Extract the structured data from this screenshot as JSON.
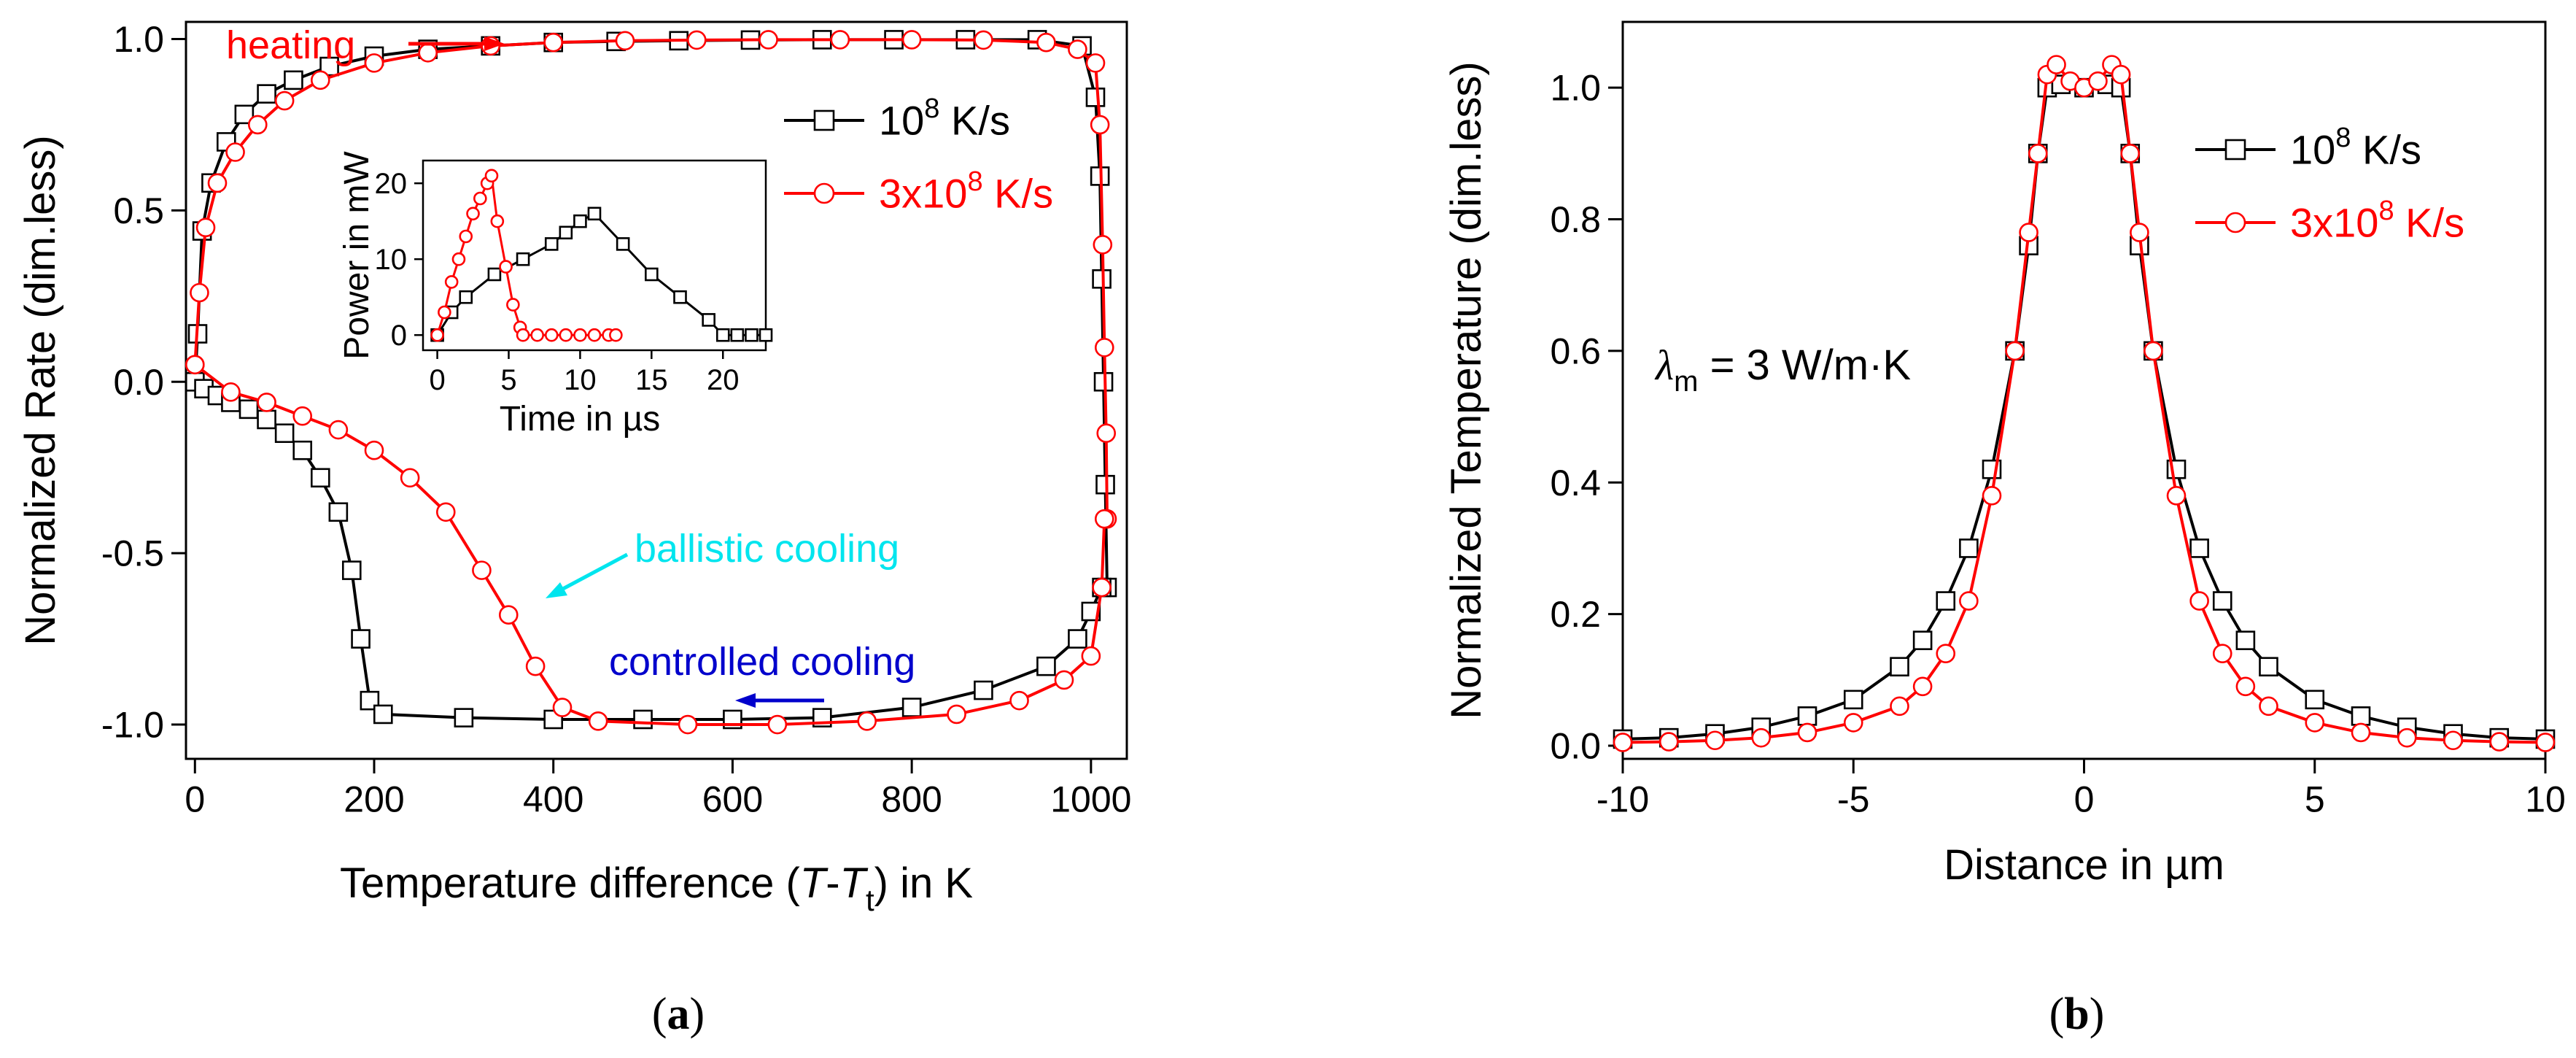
{
  "colors": {
    "black_series": "#000000",
    "red_series": "#ff0000",
    "ballistic": "#00e5ee",
    "controlled": "#0000cc",
    "heating": "#ff0000"
  },
  "chart_data": [
    {
      "id": "a",
      "type": "line",
      "panel_label": "(a)",
      "panel_letter": "a",
      "xlabel": "Temperature difference (T-Tt) in K",
      "xlabel_parts": {
        "pre": "Temperature difference (",
        "T": "T",
        "dash": "-",
        "T2": "T",
        "sub": "t",
        "post": ")  in K"
      },
      "ylabel": "Normalized Rate (dim.less)",
      "xlim": [
        -10,
        1040
      ],
      "ylim": [
        -1.1,
        1.05
      ],
      "xticks": [
        0,
        200,
        400,
        600,
        800,
        1000
      ],
      "xtick_labels": [
        "0",
        "200",
        "400",
        "600",
        "800",
        "1000"
      ],
      "yticks": [
        -1.0,
        -0.5,
        0.0,
        0.5,
        1.0
      ],
      "ytick_labels": [
        "-1.0",
        "-0.5",
        "0.0",
        "0.5",
        "1.0"
      ],
      "legend": [
        {
          "base": "10",
          "sup": "8",
          "unit": " K/s",
          "color": "#000000",
          "marker": "square"
        },
        {
          "base": "3x10",
          "sup": "8",
          "unit": " K/s",
          "color": "#ff0000",
          "marker": "circle"
        }
      ],
      "annotations": {
        "heating": "heating",
        "ballistic": "ballistic cooling",
        "controlled": "controlled cooling"
      },
      "series": [
        {
          "name": "10^8 K/s",
          "color": "#000000",
          "marker": "square",
          "heating": [
            [
              0,
              0
            ],
            [
              3,
              0.14
            ],
            [
              8,
              0.44
            ],
            [
              18,
              0.58
            ],
            [
              35,
              0.7
            ],
            [
              55,
              0.78
            ],
            [
              80,
              0.84
            ],
            [
              110,
              0.88
            ],
            [
              150,
              0.92
            ],
            [
              200,
              0.95
            ],
            [
              260,
              0.97
            ],
            [
              330,
              0.98
            ],
            [
              400,
              0.99
            ],
            [
              470,
              0.993
            ],
            [
              540,
              0.995
            ],
            [
              620,
              0.997
            ],
            [
              700,
              0.998
            ],
            [
              780,
              0.998
            ],
            [
              860,
              0.998
            ],
            [
              940,
              0.998
            ],
            [
              990,
              0.98
            ],
            [
              1005,
              0.83
            ],
            [
              1010,
              0.6
            ],
            [
              1012,
              0.3
            ],
            [
              1014,
              0.0
            ],
            [
              1016,
              -0.3
            ],
            [
              1018,
              -0.6
            ]
          ],
          "cooling": [
            [
              0,
              0
            ],
            [
              10,
              -0.02
            ],
            [
              25,
              -0.04
            ],
            [
              40,
              -0.06
            ],
            [
              60,
              -0.08
            ],
            [
              80,
              -0.11
            ],
            [
              100,
              -0.15
            ],
            [
              120,
              -0.2
            ],
            [
              140,
              -0.28
            ],
            [
              160,
              -0.38
            ],
            [
              175,
              -0.55
            ],
            [
              185,
              -0.75
            ],
            [
              195,
              -0.93
            ],
            [
              210,
              -0.97
            ],
            [
              300,
              -0.98
            ],
            [
              400,
              -0.985
            ],
            [
              500,
              -0.985
            ],
            [
              600,
              -0.985
            ],
            [
              700,
              -0.98
            ],
            [
              800,
              -0.95
            ],
            [
              880,
              -0.9
            ],
            [
              950,
              -0.83
            ],
            [
              985,
              -0.75
            ],
            [
              1000,
              -0.67
            ],
            [
              1012,
              -0.6
            ]
          ]
        },
        {
          "name": "3x10^8 K/s",
          "color": "#ff0000",
          "marker": "circle",
          "heating": [
            [
              0,
              0.05
            ],
            [
              5,
              0.26
            ],
            [
              12,
              0.45
            ],
            [
              25,
              0.58
            ],
            [
              45,
              0.67
            ],
            [
              70,
              0.75
            ],
            [
              100,
              0.82
            ],
            [
              140,
              0.88
            ],
            [
              200,
              0.93
            ],
            [
              260,
              0.96
            ],
            [
              330,
              0.98
            ],
            [
              400,
              0.99
            ],
            [
              480,
              0.995
            ],
            [
              560,
              0.997
            ],
            [
              640,
              0.998
            ],
            [
              720,
              0.998
            ],
            [
              800,
              0.998
            ],
            [
              880,
              0.997
            ],
            [
              950,
              0.99
            ],
            [
              985,
              0.97
            ],
            [
              1005,
              0.93
            ],
            [
              1010,
              0.75
            ],
            [
              1013,
              0.4
            ],
            [
              1015,
              0.1
            ],
            [
              1017,
              -0.15
            ],
            [
              1018,
              -0.4
            ]
          ],
          "cooling": [
            [
              0,
              0.05
            ],
            [
              40,
              -0.03
            ],
            [
              80,
              -0.06
            ],
            [
              120,
              -0.1
            ],
            [
              160,
              -0.14
            ],
            [
              200,
              -0.2
            ],
            [
              240,
              -0.28
            ],
            [
              280,
              -0.38
            ],
            [
              320,
              -0.55
            ],
            [
              350,
              -0.68
            ],
            [
              380,
              -0.83
            ],
            [
              410,
              -0.95
            ],
            [
              450,
              -0.99
            ],
            [
              550,
              -1.0
            ],
            [
              650,
              -1.0
            ],
            [
              750,
              -0.99
            ],
            [
              850,
              -0.97
            ],
            [
              920,
              -0.93
            ],
            [
              970,
              -0.87
            ],
            [
              1000,
              -0.8
            ],
            [
              1012,
              -0.6
            ],
            [
              1015,
              -0.4
            ]
          ]
        }
      ],
      "inset": {
        "xlabel": "Time in µs",
        "ylabel": "Power in mW",
        "xlim": [
          -1,
          23
        ],
        "ylim": [
          -2,
          23
        ],
        "xticks": [
          0,
          5,
          10,
          15,
          20
        ],
        "xtick_labels": [
          "0",
          "5",
          "10",
          "15",
          "20"
        ],
        "yticks": [
          0,
          10,
          20
        ],
        "ytick_labels": [
          "0",
          "10",
          "20"
        ],
        "series": [
          {
            "name": "10^8 K/s",
            "color": "#000000",
            "marker": "square",
            "points": [
              [
                0,
                0
              ],
              [
                1,
                3
              ],
              [
                2,
                5
              ],
              [
                4,
                8
              ],
              [
                6,
                10
              ],
              [
                8,
                12
              ],
              [
                9,
                13.5
              ],
              [
                10,
                15
              ],
              [
                11,
                16
              ],
              [
                13,
                12
              ],
              [
                15,
                8
              ],
              [
                17,
                5
              ],
              [
                19,
                2
              ],
              [
                20,
                0
              ],
              [
                21,
                0
              ],
              [
                22,
                0
              ],
              [
                23,
                0
              ]
            ]
          },
          {
            "name": "3x10^8 K/s",
            "color": "#ff0000",
            "marker": "circle",
            "points": [
              [
                0,
                0
              ],
              [
                0.5,
                3
              ],
              [
                1,
                7
              ],
              [
                1.5,
                10
              ],
              [
                2,
                13
              ],
              [
                2.5,
                16
              ],
              [
                3,
                18
              ],
              [
                3.5,
                20
              ],
              [
                3.8,
                21
              ],
              [
                4.2,
                15
              ],
              [
                4.8,
                9
              ],
              [
                5.3,
                4
              ],
              [
                5.8,
                1
              ],
              [
                6,
                0
              ],
              [
                7,
                0
              ],
              [
                8,
                0
              ],
              [
                9,
                0
              ],
              [
                10,
                0
              ],
              [
                11,
                0
              ],
              [
                12,
                0
              ],
              [
                12.5,
                0
              ]
            ]
          }
        ]
      }
    },
    {
      "id": "b",
      "type": "line",
      "panel_label": "(b)",
      "panel_letter": "b",
      "xlabel": "Distance in µm",
      "ylabel": "Normalized Temperature (dim.less)",
      "xlim": [
        -10,
        10
      ],
      "ylim": [
        -0.02,
        1.1
      ],
      "xticks": [
        -10,
        -5,
        0,
        5,
        10
      ],
      "xtick_labels": [
        "-10",
        "-5",
        "0",
        "5",
        "10"
      ],
      "yticks": [
        0.0,
        0.2,
        0.4,
        0.6,
        0.8,
        1.0
      ],
      "ytick_labels": [
        "0.0",
        "0.2",
        "0.4",
        "0.6",
        "0.8",
        "1.0"
      ],
      "legend": [
        {
          "base": "10",
          "sup": "8",
          "unit": " K/s",
          "color": "#000000",
          "marker": "square"
        },
        {
          "base": "3x10",
          "sup": "8",
          "unit": " K/s",
          "color": "#ff0000",
          "marker": "circle"
        }
      ],
      "annotation": {
        "symbol": "λ",
        "sub": "m",
        "text": " = 3 W/m·K"
      },
      "series": [
        {
          "name": "10^8 K/s",
          "color": "#000000",
          "marker": "square",
          "points": [
            [
              -10,
              0.01
            ],
            [
              -9,
              0.012
            ],
            [
              -8,
              0.018
            ],
            [
              -7,
              0.028
            ],
            [
              -6,
              0.045
            ],
            [
              -5,
              0.07
            ],
            [
              -4,
              0.12
            ],
            [
              -3.5,
              0.16
            ],
            [
              -3,
              0.22
            ],
            [
              -2.5,
              0.3
            ],
            [
              -2,
              0.42
            ],
            [
              -1.5,
              0.6
            ],
            [
              -1.2,
              0.76
            ],
            [
              -1,
              0.9
            ],
            [
              -0.8,
              1.0
            ],
            [
              -0.5,
              1.005
            ],
            [
              0,
              1.0
            ],
            [
              0.5,
              1.005
            ],
            [
              0.8,
              1.0
            ],
            [
              1,
              0.9
            ],
            [
              1.2,
              0.76
            ],
            [
              1.5,
              0.6
            ],
            [
              2,
              0.42
            ],
            [
              2.5,
              0.3
            ],
            [
              3,
              0.22
            ],
            [
              3.5,
              0.16
            ],
            [
              4,
              0.12
            ],
            [
              5,
              0.07
            ],
            [
              6,
              0.045
            ],
            [
              7,
              0.028
            ],
            [
              8,
              0.018
            ],
            [
              9,
              0.012
            ],
            [
              10,
              0.01
            ]
          ]
        },
        {
          "name": "3x10^8 K/s",
          "color": "#ff0000",
          "marker": "circle",
          "points": [
            [
              -10,
              0.005
            ],
            [
              -9,
              0.006
            ],
            [
              -8,
              0.008
            ],
            [
              -7,
              0.012
            ],
            [
              -6,
              0.02
            ],
            [
              -5,
              0.035
            ],
            [
              -4,
              0.06
            ],
            [
              -3.5,
              0.09
            ],
            [
              -3,
              0.14
            ],
            [
              -2.5,
              0.22
            ],
            [
              -2,
              0.38
            ],
            [
              -1.5,
              0.6
            ],
            [
              -1.2,
              0.78
            ],
            [
              -1,
              0.9
            ],
            [
              -0.8,
              1.02
            ],
            [
              -0.6,
              1.035
            ],
            [
              -0.3,
              1.01
            ],
            [
              0,
              1.0
            ],
            [
              0.3,
              1.01
            ],
            [
              0.6,
              1.035
            ],
            [
              0.8,
              1.02
            ],
            [
              1,
              0.9
            ],
            [
              1.2,
              0.78
            ],
            [
              1.5,
              0.6
            ],
            [
              2,
              0.38
            ],
            [
              2.5,
              0.22
            ],
            [
              3,
              0.14
            ],
            [
              3.5,
              0.09
            ],
            [
              4,
              0.06
            ],
            [
              5,
              0.035
            ],
            [
              6,
              0.02
            ],
            [
              7,
              0.012
            ],
            [
              8,
              0.008
            ],
            [
              9,
              0.006
            ],
            [
              10,
              0.005
            ]
          ]
        }
      ]
    }
  ]
}
